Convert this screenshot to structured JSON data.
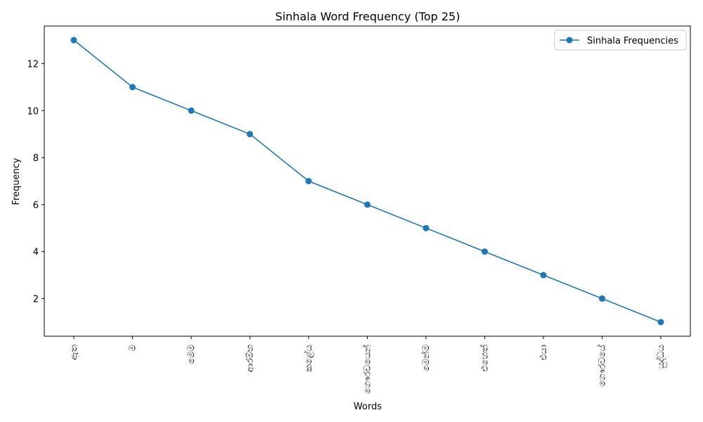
{
  "chart_data": {
    "type": "line",
    "title": "Sinhala Word Frequency (Top 25)",
    "xlabel": "Words",
    "ylabel": "Frequency",
    "categories": [
      "ඇත",
      "ම",
      "මෙම",
      "ආරම්භ",
      "කළේය",
      "ගෞරවයෙන්",
      "මෙන්ම",
      "එහෙත්",
      "එයා",
      "ගෞරවයේ",
      "යුද්ධය"
    ],
    "series": [
      {
        "name": "Sinhala Frequencies",
        "values": [
          13,
          11,
          10,
          9,
          7,
          6,
          5,
          4,
          3,
          2,
          1
        ]
      }
    ],
    "ylim": [
      0.4,
      13.6
    ],
    "yticks": [
      2,
      4,
      6,
      8,
      10,
      12
    ],
    "grid": false,
    "legend_position": "top-right",
    "line_color": "#1f77b4"
  }
}
